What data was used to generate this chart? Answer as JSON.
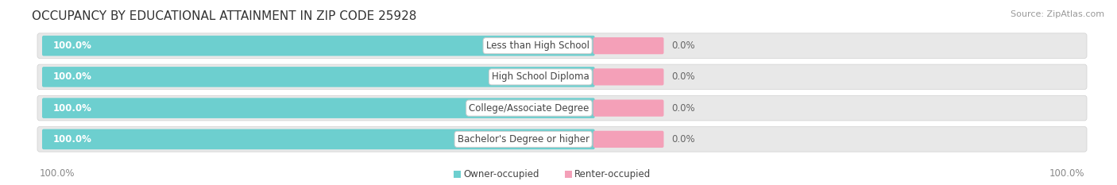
{
  "title": "OCCUPANCY BY EDUCATIONAL ATTAINMENT IN ZIP CODE 25928",
  "source": "Source: ZipAtlas.com",
  "categories": [
    "Less than High School",
    "High School Diploma",
    "College/Associate Degree",
    "Bachelor's Degree or higher"
  ],
  "owner_values": [
    100.0,
    100.0,
    100.0,
    100.0
  ],
  "renter_values": [
    0.0,
    0.0,
    0.0,
    0.0
  ],
  "owner_color": "#6dcfcf",
  "renter_color": "#f4a0b8",
  "bar_bg_color": "#e0e0e0",
  "row_bg_color": "#f0f0f0",
  "owner_label": "Owner-occupied",
  "renter_label": "Renter-occupied",
  "title_fontsize": 11,
  "source_fontsize": 8,
  "label_fontsize": 8.5,
  "bar_label_fontsize": 8.5,
  "figure_bg": "#ffffff",
  "axes_bg": "#ffffff",
  "bottom_left_label": "100.0%",
  "bottom_right_label": "100.0%",
  "owner_pct_label": "100.0%",
  "renter_pct_label": "0.0%"
}
